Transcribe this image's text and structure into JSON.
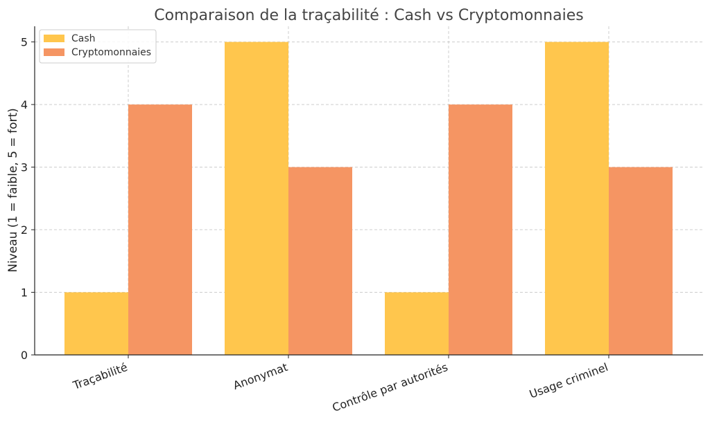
{
  "chart_data": {
    "type": "bar",
    "title": "Comparaison de la traçabilité : Cash vs Cryptomonnaies",
    "xlabel": "",
    "ylabel": "Niveau (1 = faible, 5 = fort)",
    "categories": [
      "Traçabilité",
      "Anonymat",
      "Contrôle par autorités",
      "Usage criminel"
    ],
    "series": [
      {
        "name": "Cash",
        "values": [
          1,
          5,
          1,
          5
        ],
        "color": "#FFC64D"
      },
      {
        "name": "Cryptomonnaies",
        "values": [
          4,
          3,
          4,
          3
        ],
        "color": "#F59563"
      }
    ],
    "ylim": [
      0,
      5.25
    ],
    "yticks": [
      "0",
      "1",
      "2",
      "3",
      "4",
      "5"
    ],
    "grid": true,
    "legend_position": "top-left"
  }
}
